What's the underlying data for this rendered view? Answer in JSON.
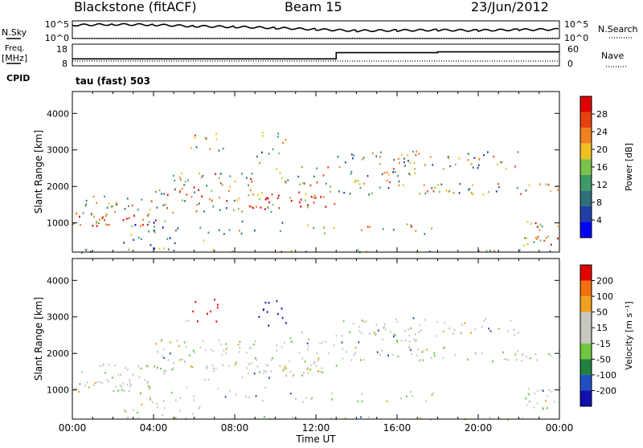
{
  "header": {
    "station": "Blackstone (fitACF)",
    "beam": "Beam 15",
    "date": "23/Jun/2012"
  },
  "left_labels": {
    "nsky": "N.Sky",
    "freq": "Freq.",
    "freq_unit": "[MHz]",
    "cpid": "CPID",
    "cpid_value": "tau (fast) 503"
  },
  "right_labels": {
    "nsearch": "N.Search",
    "nave": "Nave"
  },
  "colors": {
    "power_scale": [
      "#0000ff",
      "#1f3fa6",
      "#2f6f7a",
      "#3e9a66",
      "#7cc24a",
      "#f0c020",
      "#f08020",
      "#e84010",
      "#e00000"
    ],
    "velocity_scale": [
      "#1010b0",
      "#2050c0",
      "#208040",
      "#70c840",
      "#c8c8c0",
      "#c8c8c0",
      "#f0a020",
      "#f07010",
      "#e00000"
    ]
  },
  "chart_data": [
    {
      "type": "line",
      "name": "noise",
      "yticks": [
        "10^5",
        "10^0"
      ],
      "right_yticks": [
        "10^5",
        "10^0"
      ],
      "series": [
        {
          "name": "N.Sky",
          "x_hours": [
            0,
            2,
            4,
            6,
            8,
            10,
            12,
            14,
            16,
            18,
            20,
            22,
            24
          ],
          "values": [
            3.8,
            4.0,
            3.9,
            3.5,
            3.3,
            3.0,
            2.6,
            2.2,
            2.3,
            2.4,
            2.3,
            2.5,
            2.6
          ]
        },
        {
          "name": "N.Search",
          "x_hours": [
            0,
            24
          ],
          "values": [
            0.2,
            0.2
          ]
        }
      ]
    },
    {
      "type": "line",
      "name": "frequency",
      "yticks": [
        18,
        8
      ],
      "right_yticks": [
        60,
        0
      ],
      "series": [
        {
          "name": "Freq.",
          "x_hours": [
            0,
            13,
            13,
            18,
            18,
            24
          ],
          "values": [
            10.5,
            10.5,
            14.5,
            14.5,
            15,
            15
          ]
        },
        {
          "name": "Nave",
          "x_hours": [
            0,
            24
          ],
          "values": [
            2,
            2
          ]
        }
      ]
    },
    {
      "type": "heatmap",
      "name": "power",
      "ylabel": "Slant Range [km]",
      "yticks": [
        1000,
        2000,
        3000,
        4000
      ],
      "ylim": [
        200,
        4600
      ],
      "colorbar_label": "Power [dB]",
      "colorbar_ticks": [
        4,
        8,
        12,
        16,
        20,
        24,
        28
      ],
      "colorbar_range": [
        0,
        32
      ]
    },
    {
      "type": "heatmap",
      "name": "velocity",
      "ylabel": "Slant Range [km]",
      "yticks": [
        1000,
        2000,
        3000,
        4000
      ],
      "ylim": [
        200,
        4600
      ],
      "colorbar_label": "Velocity [m s⁻¹]",
      "colorbar_ticks": [
        200,
        100,
        50,
        15,
        -15,
        -50,
        -100,
        -200
      ],
      "xlabel": "Time UT",
      "xticks": [
        "00:00",
        "04:00",
        "08:00",
        "12:00",
        "16:00",
        "20:00",
        "00:00"
      ],
      "xlim_hours": [
        0,
        24
      ]
    }
  ]
}
